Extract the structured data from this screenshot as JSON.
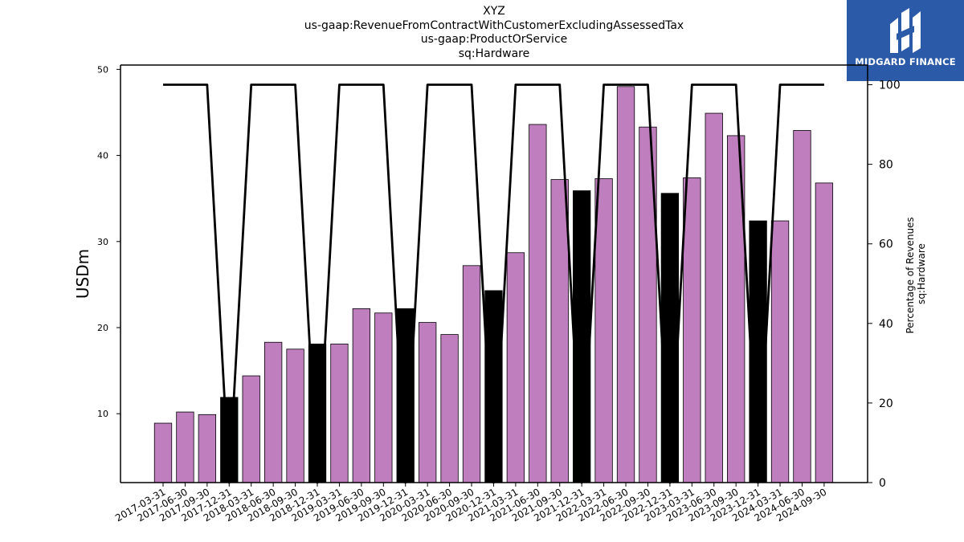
{
  "title": {
    "lines": [
      "XYZ",
      "us-gaap:RevenueFromContractWithCustomerExcludingAssessedTax",
      "us-gaap:ProductOrService",
      "sq:Hardware"
    ]
  },
  "logo": {
    "text": "MIDGARD FINANCE",
    "background": "#2a5aa8"
  },
  "chart_data": {
    "type": "bar",
    "categories": [
      "2017-03-31",
      "2017-06-30",
      "2017-09-30",
      "2017-12-31",
      "2018-03-31",
      "2018-06-30",
      "2018-09-30",
      "2018-12-31",
      "2019-03-31",
      "2019-06-30",
      "2019-09-30",
      "2019-12-31",
      "2020-03-31",
      "2020-06-30",
      "2020-09-30",
      "2020-12-31",
      "2021-03-31",
      "2021-06-30",
      "2021-09-30",
      "2021-12-31",
      "2022-03-31",
      "2022-06-30",
      "2022-09-30",
      "2022-12-31",
      "2023-03-31",
      "2023-06-30",
      "2023-09-30",
      "2023-12-31",
      "2024-03-31",
      "2024-06-30",
      "2024-09-30"
    ],
    "series": [
      {
        "axis": "left",
        "kind": "bar",
        "values": [
          8.9,
          10.2,
          9.9,
          11.9,
          14.4,
          18.3,
          17.5,
          18.1,
          18.1,
          22.2,
          21.7,
          22.2,
          20.6,
          19.2,
          27.2,
          24.3,
          28.7,
          43.6,
          37.2,
          35.9,
          37.3,
          48.0,
          43.3,
          35.6,
          37.4,
          44.9,
          42.3,
          32.4,
          32.4,
          42.9,
          36.8
        ],
        "colors": [
          "#bf7fbf",
          "#bf7fbf",
          "#bf7fbf",
          "#000000",
          "#bf7fbf",
          "#bf7fbf",
          "#bf7fbf",
          "#000000",
          "#bf7fbf",
          "#bf7fbf",
          "#bf7fbf",
          "#000000",
          "#bf7fbf",
          "#bf7fbf",
          "#bf7fbf",
          "#000000",
          "#bf7fbf",
          "#bf7fbf",
          "#bf7fbf",
          "#000000",
          "#bf7fbf",
          "#bf7fbf",
          "#bf7fbf",
          "#000000",
          "#bf7fbf",
          "#bf7fbf",
          "#bf7fbf",
          "#000000",
          "#bf7fbf",
          "#bf7fbf",
          "#bf7fbf"
        ]
      },
      {
        "axis": "right",
        "kind": "line",
        "color": "#000000",
        "values": [
          100,
          100,
          100,
          0,
          100,
          100,
          100,
          0,
          100,
          100,
          100,
          0,
          100,
          100,
          100,
          0,
          100,
          100,
          100,
          0,
          100,
          100,
          100,
          0,
          100,
          100,
          100,
          0,
          100,
          100,
          100
        ]
      }
    ],
    "xlabel": "",
    "ylabel": "USDm",
    "y2label_lines": [
      "Percentage of Revenues",
      "sq:Hardware"
    ],
    "ylim": [
      2,
      50.5
    ],
    "y2lim": [
      0,
      100
    ],
    "yticks": [
      10,
      20,
      30,
      40,
      50
    ],
    "y2ticks": [
      0,
      20,
      40,
      60,
      80,
      100
    ],
    "grid": false,
    "bar_color": "#bf7fbf",
    "highlight_color": "#000000"
  }
}
